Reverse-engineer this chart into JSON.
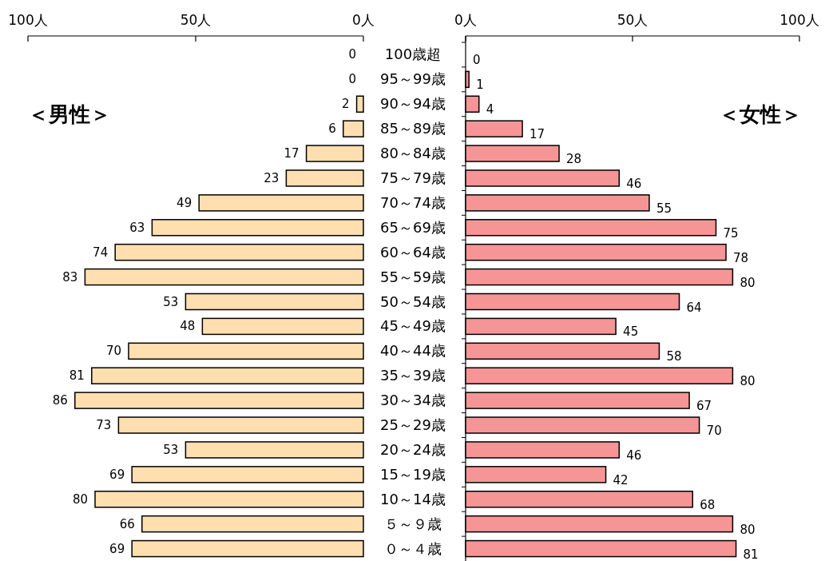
{
  "chart_data": [
    {
      "type": "bar",
      "orientation": "horizontal",
      "title": "＜男性＞",
      "color": "#ffdfb0",
      "data_labels": true,
      "categories": [
        "100歳超",
        "95～99歳",
        "90～94歳",
        "85～89歳",
        "80～84歳",
        "75～79歳",
        "70～74歳",
        "65～69歳",
        "60～64歳",
        "55～59歳",
        "50～54歳",
        "45～49歳",
        "40～44歳",
        "35～39歳",
        "30～34歳",
        "25～29歳",
        "20～24歳",
        "15～19歳",
        "10～14歳",
        "５～９歳",
        "０～４歳"
      ],
      "values": [
        0,
        0,
        2,
        6,
        17,
        23,
        49,
        63,
        74,
        83,
        53,
        48,
        70,
        81,
        86,
        73,
        53,
        69,
        80,
        66,
        69
      ],
      "xlim": [
        100,
        0
      ],
      "xticks": [
        {
          "value": 100,
          "label": "100人"
        },
        {
          "value": 50,
          "label": "50人"
        },
        {
          "value": 0,
          "label": "0人"
        }
      ]
    },
    {
      "type": "bar",
      "orientation": "horizontal",
      "title": "＜女性＞",
      "color": "#f59596",
      "data_labels": true,
      "tick_labels": "x",
      "categories": [
        null,
        null,
        null,
        null,
        null,
        null,
        null,
        null,
        null,
        null,
        null,
        null,
        null,
        null,
        null,
        null,
        null,
        null,
        null,
        null,
        null
      ],
      "values": [
        0,
        1,
        4,
        17,
        28,
        46,
        55,
        75,
        78,
        80,
        64,
        45,
        58,
        80,
        67,
        70,
        46,
        42,
        68,
        80,
        81
      ],
      "xlim": [
        0,
        100
      ],
      "xticks": [
        {
          "value": 0,
          "label": "0人"
        },
        {
          "value": 50,
          "label": "50人"
        },
        {
          "value": 100,
          "label": "100人"
        }
      ]
    }
  ]
}
